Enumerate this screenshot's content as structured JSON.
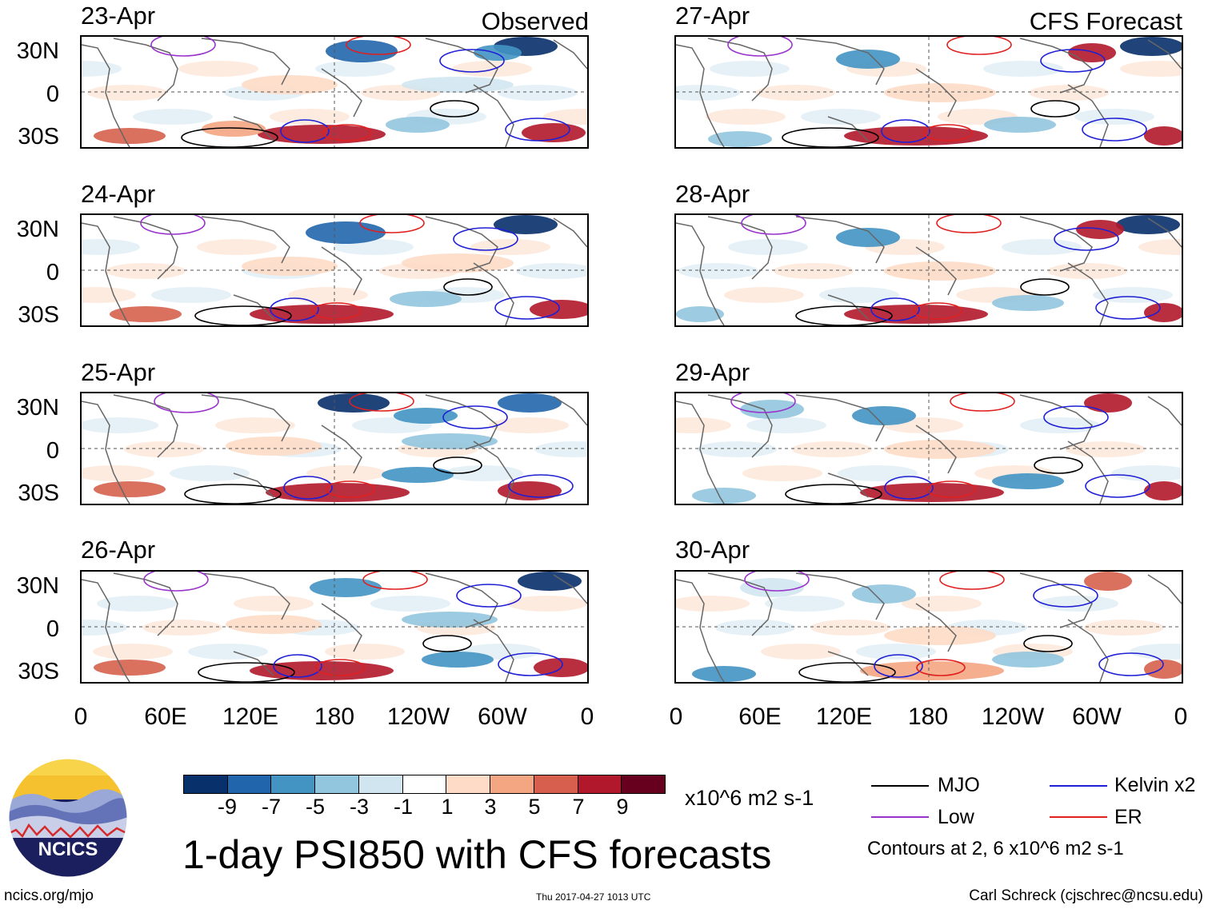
{
  "columns": {
    "observed": "Observed",
    "forecast": "CFS Forecast"
  },
  "panels": [
    {
      "date": "23-Apr",
      "column": "observed",
      "row": 0,
      "pattern": 0
    },
    {
      "date": "24-Apr",
      "column": "observed",
      "row": 1,
      "pattern": 1
    },
    {
      "date": "25-Apr",
      "column": "observed",
      "row": 2,
      "pattern": 2
    },
    {
      "date": "26-Apr",
      "column": "observed",
      "row": 3,
      "pattern": 3
    },
    {
      "date": "27-Apr",
      "column": "forecast",
      "row": 0,
      "pattern": 4
    },
    {
      "date": "28-Apr",
      "column": "forecast",
      "row": 1,
      "pattern": 5
    },
    {
      "date": "29-Apr",
      "column": "forecast",
      "row": 2,
      "pattern": 6
    },
    {
      "date": "30-Apr",
      "column": "forecast",
      "row": 3,
      "pattern": 7
    }
  ],
  "lat_labels": [
    "30N",
    "0",
    "30S"
  ],
  "lon_labels": [
    "0",
    "60E",
    "120E",
    "180",
    "120W",
    "60W",
    "0"
  ],
  "colorbar": {
    "colors": [
      "#08306b",
      "#2166ac",
      "#4393c3",
      "#92c5de",
      "#d1e5f0",
      "#ffffff",
      "#fddbc7",
      "#f4a582",
      "#d6604d",
      "#b2182b",
      "#67001f"
    ],
    "ticks": [
      "-9",
      "-7",
      "-5",
      "-3",
      "-1",
      "1",
      "3",
      "5",
      "7",
      "9"
    ],
    "units": "x10^6 m2 s-1"
  },
  "legend": {
    "items": [
      {
        "label": "MJO",
        "color": "#000000"
      },
      {
        "label": "Kelvin x2",
        "color": "#1f1fd6"
      },
      {
        "label": "Low",
        "color": "#9933cc"
      },
      {
        "label": "ER",
        "color": "#e01f1f"
      }
    ],
    "note": "Contours at 2, 6 x10^6 m2 s-1"
  },
  "title": "1-day PSI850 with CFS forecasts",
  "logo": {
    "text": "NCICS"
  },
  "footer": {
    "left": "ncics.org/mjo",
    "center": "Thu 2017-04-27 1013 UTC",
    "right": "Carl Schreck (cjschrec@ncsu.edu)"
  }
}
